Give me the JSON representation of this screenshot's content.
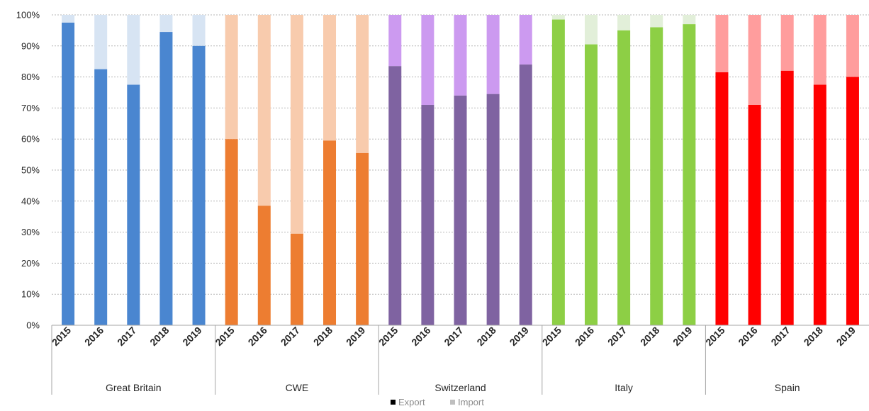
{
  "chart_data": {
    "type": "bar",
    "stacked": true,
    "percent_stacked": true,
    "y_ticks": [
      "0%",
      "10%",
      "20%",
      "30%",
      "40%",
      "50%",
      "60%",
      "70%",
      "80%",
      "90%",
      "100%"
    ],
    "ylim": [
      0,
      100
    ],
    "grid": true,
    "legend_position": "bottom-center",
    "legend": [
      {
        "label": "Export",
        "color": "#000000"
      },
      {
        "label": "Import",
        "color": "#bfbfbf"
      }
    ],
    "groups": [
      {
        "name": "Great Britain",
        "export_color": "#4a86d0",
        "import_color": "#d7e4f3",
        "years": [
          "2015",
          "2016",
          "2017",
          "2018",
          "2019"
        ],
        "export": [
          97.5,
          82.5,
          77.5,
          94.5,
          90
        ],
        "import": [
          2.5,
          17.5,
          22.5,
          5.5,
          10
        ]
      },
      {
        "name": "CWE",
        "export_color": "#ed7d31",
        "import_color": "#f8cbad",
        "years": [
          "2015",
          "2016",
          "2017",
          "2018",
          "2019"
        ],
        "export": [
          60,
          38.5,
          29.5,
          59.5,
          55.5
        ],
        "import": [
          40,
          61.5,
          70.5,
          40.5,
          44.5
        ]
      },
      {
        "name": "Switzerland",
        "export_color": "#7f63a1",
        "import_color": "#cc9af0",
        "years": [
          "2015",
          "2016",
          "2017",
          "2018",
          "2019"
        ],
        "export": [
          83.5,
          71,
          74,
          74.5,
          84
        ],
        "import": [
          16.5,
          29,
          26,
          25.5,
          16
        ]
      },
      {
        "name": "Italy",
        "export_color": "#8dcf45",
        "import_color": "#e2efd9",
        "years": [
          "2015",
          "2016",
          "2017",
          "2018",
          "2019"
        ],
        "export": [
          98.5,
          90.5,
          95,
          96,
          97
        ],
        "import": [
          1.5,
          9.5,
          5,
          4,
          3
        ]
      },
      {
        "name": "Spain",
        "export_color": "#ff0000",
        "import_color": "#ff9d9d",
        "years": [
          "2015",
          "2016",
          "2017",
          "2018",
          "2019"
        ],
        "export": [
          81.5,
          71,
          82,
          77.5,
          80
        ],
        "import": [
          18.5,
          29,
          18,
          22.5,
          20
        ]
      }
    ]
  }
}
